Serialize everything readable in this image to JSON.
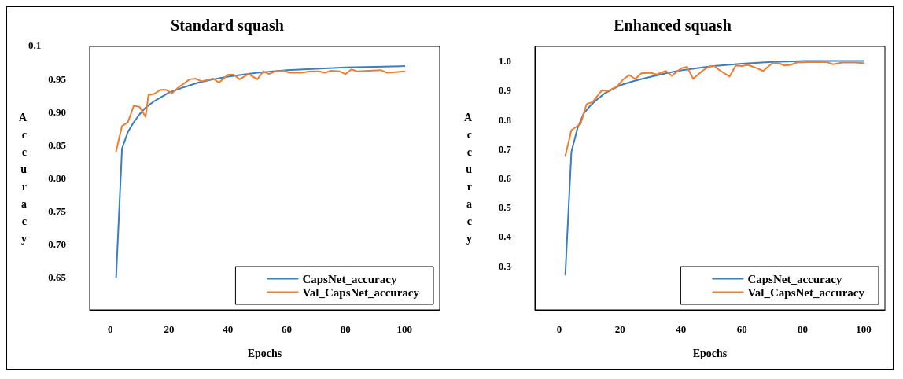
{
  "chart_data": [
    {
      "type": "line",
      "title": "Standard squash",
      "xlabel": "Epochs",
      "ylabel": "Accuracy",
      "xlim": [
        -7,
        112
      ],
      "xticks": [
        0,
        20,
        40,
        60,
        80,
        100
      ],
      "ylim": [
        0.6,
        1.0
      ],
      "yticks": [
        {
          "value": 0.65,
          "label": "0.65"
        },
        {
          "value": 0.7,
          "label": "0.70"
        },
        {
          "value": 0.75,
          "label": "0.75"
        },
        {
          "value": 0.8,
          "label": "0.80"
        },
        {
          "value": 0.85,
          "label": "0.85"
        },
        {
          "value": 0.9,
          "label": "0.90"
        },
        {
          "value": 0.95,
          "label": "0.95"
        }
      ],
      "annotations": [
        "0.1"
      ],
      "grid": false,
      "legend": "bottom right",
      "marker": "none",
      "line_style": "solid",
      "series": [
        {
          "name": "CapsNet_accuracy",
          "color": "#3a7ebf",
          "x": [
            2,
            4,
            6,
            8,
            10,
            12,
            15,
            20,
            25,
            30,
            35,
            40,
            50,
            60,
            70,
            80,
            90,
            100
          ],
          "values": [
            0.65,
            0.845,
            0.87,
            0.885,
            0.897,
            0.907,
            0.917,
            0.93,
            0.938,
            0.945,
            0.95,
            0.954,
            0.96,
            0.964,
            0.966,
            0.968,
            0.969,
            0.97
          ]
        },
        {
          "name": "Val_CapsNet_accuracy",
          "color": "#ed7d31",
          "x": [
            2,
            4,
            6,
            8,
            10,
            12,
            13,
            15,
            17,
            19,
            21,
            23,
            27,
            29,
            31,
            35,
            37,
            40,
            42,
            44,
            47,
            50,
            52,
            54,
            56,
            59,
            61,
            65,
            68,
            71,
            73,
            75,
            78,
            80,
            82,
            84,
            88,
            92,
            94,
            97,
            100
          ],
          "values": [
            0.841,
            0.879,
            0.885,
            0.91,
            0.908,
            0.893,
            0.926,
            0.928,
            0.934,
            0.934,
            0.929,
            0.937,
            0.95,
            0.951,
            0.947,
            0.951,
            0.945,
            0.957,
            0.957,
            0.95,
            0.958,
            0.95,
            0.962,
            0.958,
            0.962,
            0.963,
            0.96,
            0.96,
            0.962,
            0.962,
            0.96,
            0.963,
            0.962,
            0.958,
            0.965,
            0.962,
            0.963,
            0.964,
            0.96,
            0.961,
            0.962
          ]
        }
      ]
    },
    {
      "type": "line",
      "title": "Enhanced squash",
      "xlabel": "Epochs",
      "ylabel": "Accuracy",
      "xlim": [
        -8,
        107
      ],
      "xticks": [
        0,
        20,
        40,
        60,
        80,
        100
      ],
      "ylim": [
        0.15,
        1.05
      ],
      "yticks": [
        0.3,
        0.4,
        0.5,
        0.6,
        0.7,
        0.8,
        0.9,
        {
          "value": 1.0,
          "label": "1.0"
        }
      ],
      "grid": false,
      "legend": "bottom right",
      "marker": "none",
      "line_style": "solid",
      "series": [
        {
          "name": "CapsNet_accuracy",
          "color": "#3a7ebf",
          "x": [
            2,
            4,
            6,
            8,
            10,
            12,
            15,
            20,
            25,
            30,
            35,
            40,
            50,
            60,
            70,
            80,
            90,
            100
          ],
          "values": [
            0.27,
            0.69,
            0.77,
            0.82,
            0.845,
            0.865,
            0.89,
            0.917,
            0.933,
            0.946,
            0.958,
            0.968,
            0.982,
            0.991,
            0.997,
            1.0,
            1.0,
            1.0
          ]
        },
        {
          "name": "Val_CapsNet_accuracy",
          "color": "#ed7d31",
          "x": [
            2,
            4,
            7,
            9,
            11,
            14,
            16,
            19,
            21,
            23,
            25,
            27,
            30,
            32,
            35,
            37,
            40,
            42,
            44,
            47,
            49,
            51,
            53,
            56,
            58,
            60,
            62,
            65,
            67,
            70,
            72,
            74,
            76,
            78,
            82,
            86,
            88,
            90,
            93,
            97,
            100
          ],
          "values": [
            0.675,
            0.764,
            0.785,
            0.853,
            0.86,
            0.9,
            0.897,
            0.913,
            0.937,
            0.952,
            0.939,
            0.958,
            0.96,
            0.954,
            0.966,
            0.949,
            0.975,
            0.98,
            0.939,
            0.966,
            0.98,
            0.983,
            0.966,
            0.947,
            0.985,
            0.983,
            0.987,
            0.975,
            0.966,
            0.993,
            0.993,
            0.985,
            0.987,
            0.995,
            0.996,
            0.996,
            0.996,
            0.989,
            0.995,
            0.995,
            0.993
          ]
        }
      ]
    }
  ]
}
